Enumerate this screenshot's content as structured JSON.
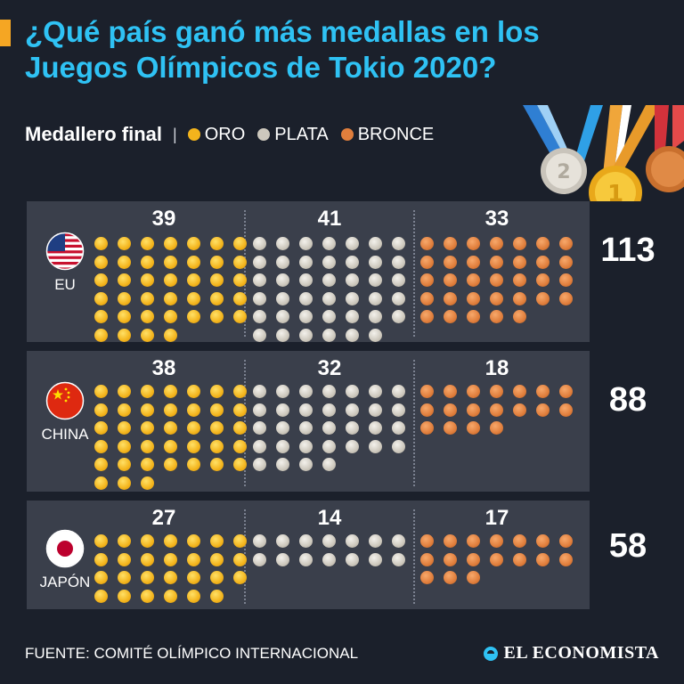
{
  "title": "¿Qué país ganó más medallas en los Juegos Olímpicos de Tokio 2020?",
  "legend": {
    "title": "Medallero final",
    "items": [
      {
        "label": "ORO",
        "color": "#f3b41c"
      },
      {
        "label": "PLATA",
        "color": "#cdc8bd"
      },
      {
        "label": "BRONCE",
        "color": "#e07e3c"
      }
    ]
  },
  "chart_data": {
    "type": "table",
    "columns": [
      "ORO",
      "PLATA",
      "BRONCE"
    ],
    "rows": [
      {
        "country": "EU",
        "flag": "usa-flag",
        "gold": 39,
        "silver": 41,
        "bronze": 33,
        "total": 113
      },
      {
        "country": "CHINA",
        "flag": "china-flag",
        "gold": 38,
        "silver": 32,
        "bronze": 18,
        "total": 88
      },
      {
        "country": "JAPÓN",
        "flag": "japan-flag",
        "gold": 27,
        "silver": 14,
        "bronze": 17,
        "total": 58
      }
    ],
    "colors": {
      "gold": "#f3b41c",
      "silver": "#cdc8bd",
      "bronze": "#e07e3c"
    }
  },
  "footer": {
    "source": "FUENTE: COMITÉ OLÍMPICO INTERNACIONAL",
    "brand": "EL ECONOMISTA"
  }
}
